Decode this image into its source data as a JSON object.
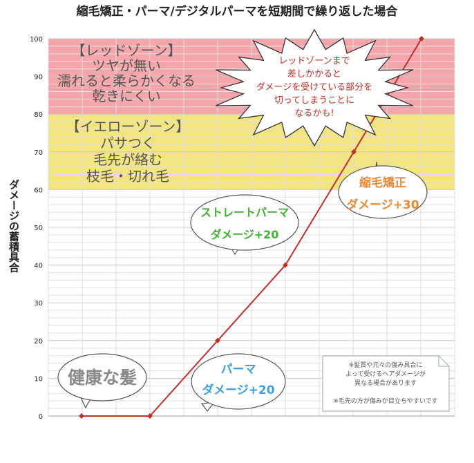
{
  "chart_data": {
    "type": "line",
    "title": "縮毛矯正・パーマ/デジタルパーマを短期間で繰り返した場合",
    "ylabel": "ダメージの蓄積具合",
    "xlabel": "",
    "ylim": [
      0,
      100
    ],
    "yticks": [
      "0",
      "10",
      "20",
      "30",
      "40",
      "50",
      "60",
      "70",
      "80",
      "90",
      "100"
    ],
    "grid": true,
    "series": [
      {
        "values": [
          0,
          0,
          20,
          40,
          70,
          100
        ],
        "color": "#c0302a"
      }
    ],
    "zones": [
      {
        "from": 80,
        "to": 100,
        "color": "#f4a6ab",
        "lines": [
          "【レッドゾーン】",
          "ツヤが無い",
          "濡れると柔らかくなる",
          "乾きにくい"
        ]
      },
      {
        "from": 60,
        "to": 80,
        "color": "#f2e47e",
        "lines": [
          "【イエローゾーン】",
          "パサつく",
          "毛先が絡む",
          "枝毛・切れ毛"
        ]
      }
    ],
    "annotations": {
      "healthy": {
        "text": "健康な髪",
        "color": "#8a8a8a"
      },
      "perm": {
        "lines": [
          "パーマ",
          "ダメージ+20"
        ],
        "color": "#3ea0d8"
      },
      "straight_perm": {
        "lines": [
          "ストレートパーマ",
          "ダメージ+20"
        ],
        "color": "#3db22e"
      },
      "straightening": {
        "lines": [
          "縮毛矯正",
          "ダメージ+30"
        ],
        "color": "#e88a38"
      },
      "warning": {
        "lines": [
          "レッドゾーンまで",
          "差しかかると",
          "ダメージを受けている部分を",
          "切ってしまうことに",
          "なるかも!"
        ],
        "color": "#c0302a"
      },
      "note": {
        "lines": [
          "※髪質や元々の傷み具合に",
          "よって受けるヘアダメージが",
          "異なる場合があります",
          "",
          "※毛先の方が傷みが目立ちやすいです"
        ],
        "color": "#555555"
      }
    }
  }
}
